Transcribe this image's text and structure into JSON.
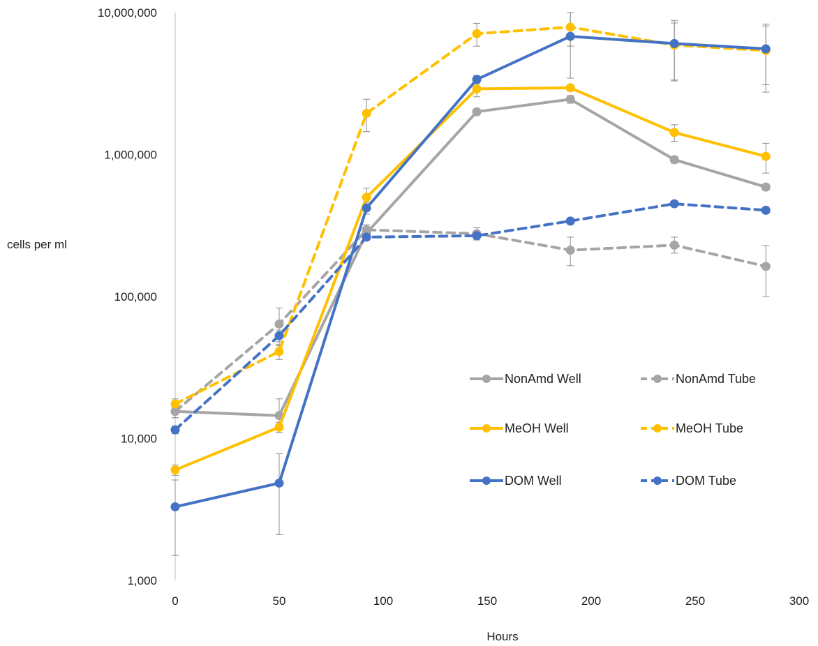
{
  "chart_data": {
    "type": "line",
    "title": "",
    "xlabel": "Hours",
    "ylabel": "cells per ml",
    "xlim": [
      0,
      300
    ],
    "ylim": [
      1000,
      10000000
    ],
    "yscale": "log",
    "x_ticks": [
      "0",
      "50",
      "100",
      "150",
      "200",
      "250",
      "300"
    ],
    "y_ticks": [
      "1,000",
      "10,000",
      "100,000",
      "1,000,000",
      "10,000,000"
    ],
    "grid": false,
    "legend_position": "lower-right",
    "series": [
      {
        "name": "NonAmd Well",
        "color": "#A5A5A5",
        "dashed": false,
        "points": [
          [
            0,
            15500
          ],
          [
            50,
            14500
          ],
          [
            92,
            280000
          ],
          [
            145,
            2000000
          ],
          [
            190,
            2450000
          ],
          [
            240,
            920000
          ],
          [
            284,
            590000
          ]
        ],
        "errors": [
          [
            0,
            14000,
            17000
          ],
          [
            50,
            11000,
            19000
          ],
          [
            92,
            250000,
            310000
          ],
          [
            145,
            1900000,
            2100000
          ],
          [
            190,
            2300000,
            2600000
          ],
          [
            240,
            870000,
            970000
          ],
          [
            284,
            560000,
            620000
          ]
        ]
      },
      {
        "name": "NonAmd Tube",
        "color": "#A5A5A5",
        "dashed": true,
        "points": [
          [
            0,
            15500
          ],
          [
            50,
            64000
          ],
          [
            92,
            295000
          ],
          [
            145,
            277000
          ],
          [
            190,
            212000
          ],
          [
            240,
            230000
          ],
          [
            284,
            163000
          ]
        ],
        "errors": [
          [
            0,
            14000,
            17000
          ],
          [
            50,
            45000,
            83000
          ],
          [
            92,
            270000,
            320000
          ],
          [
            145,
            250000,
            305000
          ],
          [
            190,
            165000,
            262000
          ],
          [
            240,
            202000,
            262000
          ],
          [
            284,
            100000,
            228000
          ]
        ]
      },
      {
        "name": "MeOH Well",
        "color": "#FFC000",
        "dashed": false,
        "points": [
          [
            0,
            6000
          ],
          [
            50,
            12000
          ],
          [
            92,
            500000
          ],
          [
            145,
            2900000
          ],
          [
            190,
            2950000
          ],
          [
            240,
            1430000
          ],
          [
            284,
            970000
          ]
        ],
        "errors": [
          [
            0,
            5500,
            6500
          ],
          [
            50,
            11000,
            13000
          ],
          [
            92,
            420000,
            580000
          ],
          [
            145,
            2550000,
            3250000
          ],
          [
            190,
            2800000,
            3100000
          ],
          [
            240,
            1240000,
            1620000
          ],
          [
            284,
            740000,
            1200000
          ]
        ]
      },
      {
        "name": "MeOH Tube",
        "color": "#FFC000",
        "dashed": true,
        "points": [
          [
            0,
            17500
          ],
          [
            50,
            41000
          ],
          [
            92,
            1950000
          ],
          [
            145,
            7100000
          ],
          [
            190,
            7900000
          ],
          [
            240,
            5900000
          ],
          [
            284,
            5400000
          ]
        ],
        "errors": [
          [
            0,
            16500,
            19000
          ],
          [
            50,
            36000,
            46000
          ],
          [
            92,
            1450000,
            2450000
          ],
          [
            145,
            5800000,
            8400000
          ],
          [
            190,
            5800000,
            10000000
          ],
          [
            240,
            3350000,
            8450000
          ],
          [
            284,
            2750000,
            8050000
          ]
        ]
      },
      {
        "name": "DOM Well",
        "color": "#4472C4",
        "dashed": false,
        "points": [
          [
            0,
            3300
          ],
          [
            50,
            4850
          ],
          [
            92,
            420000
          ],
          [
            145,
            3380000
          ],
          [
            190,
            6800000
          ],
          [
            240,
            6050000
          ],
          [
            284,
            5550000
          ]
        ],
        "errors": [
          [
            0,
            1500,
            5100
          ],
          [
            50,
            2100,
            7800
          ],
          [
            92,
            380000,
            460000
          ],
          [
            145,
            3150000,
            3600000
          ],
          [
            190,
            3450000,
            10000000
          ],
          [
            240,
            3300000,
            8800000
          ],
          [
            284,
            3100000,
            8300000
          ]
        ]
      },
      {
        "name": "DOM Tube",
        "color": "#4472C4",
        "dashed": true,
        "points": [
          [
            0,
            11500
          ],
          [
            50,
            53000
          ],
          [
            92,
            262000
          ],
          [
            145,
            268000
          ],
          [
            190,
            340000
          ],
          [
            240,
            450000
          ],
          [
            284,
            405000
          ]
        ],
        "errors": [
          [
            0,
            10800,
            12200
          ],
          [
            50,
            48000,
            58000
          ],
          [
            92,
            250000,
            275000
          ],
          [
            145,
            250000,
            286000
          ],
          [
            190,
            325000,
            355000
          ],
          [
            240,
            430000,
            470000
          ],
          [
            284,
            385000,
            425000
          ]
        ]
      }
    ]
  }
}
